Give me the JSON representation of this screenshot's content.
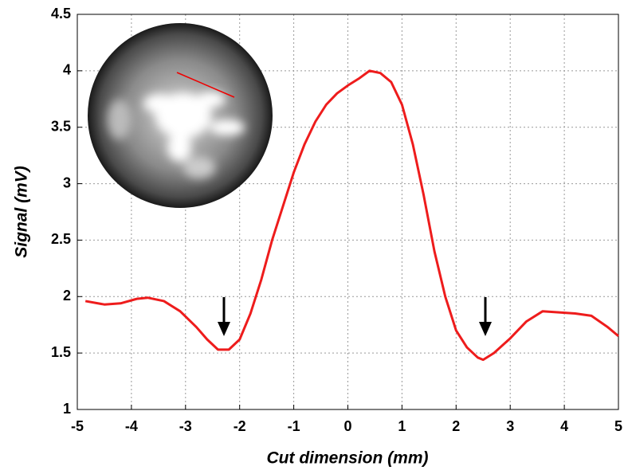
{
  "chart_data": {
    "type": "line",
    "x_label": "Cut dimension (mm)",
    "y_label": "Signal (mV)",
    "xlim": [
      -5,
      5
    ],
    "ylim": [
      1,
      4.5
    ],
    "xticks": [
      -5,
      -4,
      -3,
      -2,
      -1,
      0,
      1,
      2,
      3,
      4,
      5
    ],
    "yticks": [
      1,
      1.5,
      2,
      2.5,
      3,
      3.5,
      4,
      4.5
    ],
    "grid": true,
    "series": [
      {
        "color": "#ee1c1c",
        "x": [
          -4.85,
          -4.5,
          -4.2,
          -3.9,
          -3.7,
          -3.4,
          -3.1,
          -2.8,
          -2.6,
          -2.4,
          -2.2,
          -2.0,
          -1.8,
          -1.6,
          -1.4,
          -1.2,
          -1.0,
          -0.8,
          -0.6,
          -0.4,
          -0.2,
          0,
          0.2,
          0.4,
          0.6,
          0.8,
          1.0,
          1.2,
          1.4,
          1.6,
          1.8,
          2.0,
          2.2,
          2.4,
          2.5,
          2.7,
          3.0,
          3.3,
          3.6,
          3.9,
          4.2,
          4.5,
          4.8,
          5.0
        ],
        "values": [
          1.96,
          1.93,
          1.94,
          1.98,
          1.99,
          1.96,
          1.87,
          1.73,
          1.62,
          1.53,
          1.53,
          1.62,
          1.85,
          2.15,
          2.5,
          2.8,
          3.1,
          3.35,
          3.55,
          3.7,
          3.8,
          3.87,
          3.93,
          4.0,
          3.98,
          3.9,
          3.7,
          3.35,
          2.9,
          2.4,
          2.0,
          1.7,
          1.55,
          1.46,
          1.44,
          1.5,
          1.63,
          1.78,
          1.87,
          1.86,
          1.85,
          1.83,
          1.73,
          1.65
        ]
      }
    ]
  }
}
